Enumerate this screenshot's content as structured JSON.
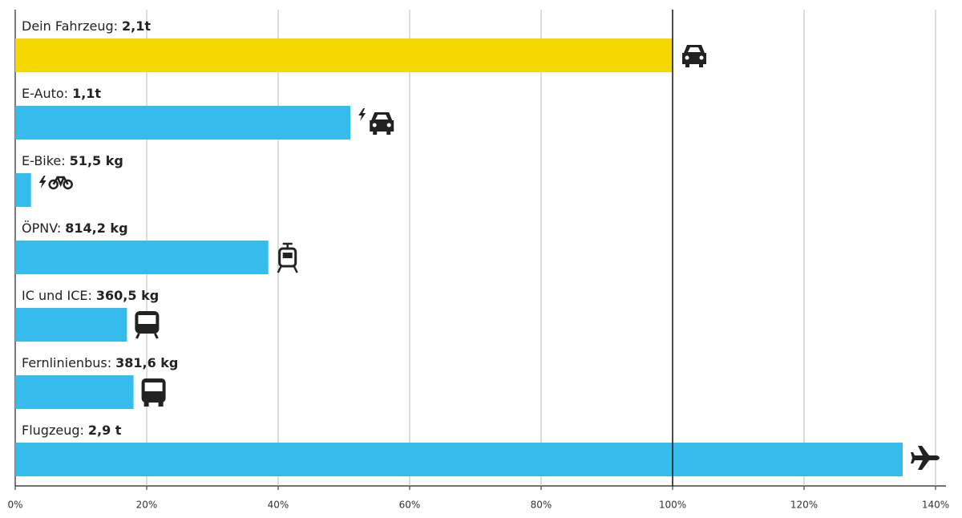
{
  "chart_data": {
    "type": "hbar",
    "categories": [
      "Dein Fahrzeug:",
      "E-Auto:",
      "E-Bike:",
      "ÖPNV:",
      "IC und ICE:",
      "Fernlinienbus:",
      "Flugzeug:"
    ],
    "amount_labels": [
      "2,1t",
      "1,1t",
      "51,5 kg",
      "814,2 kg",
      "360,5 kg",
      "381,6 kg",
      "2,9 t"
    ],
    "values": [
      100,
      51,
      2.4,
      38.5,
      17,
      18,
      135
    ],
    "colors": [
      "#f5d800",
      "#35bced",
      "#35bced",
      "#35bced",
      "#35bced",
      "#35bced",
      "#35bced"
    ],
    "xlim": [
      0,
      140
    ],
    "xticks": [
      {
        "value": 0,
        "label": "0%"
      },
      {
        "value": 20,
        "label": "20%"
      },
      {
        "value": 40,
        "label": "40%"
      },
      {
        "value": 60,
        "label": "60%"
      },
      {
        "value": 80,
        "label": "80%"
      },
      {
        "value": 100,
        "label": "100%"
      },
      {
        "value": 120,
        "label": "120%"
      },
      {
        "value": 140,
        "label": "140%"
      }
    ],
    "reference_line": 100,
    "grid": true
  }
}
